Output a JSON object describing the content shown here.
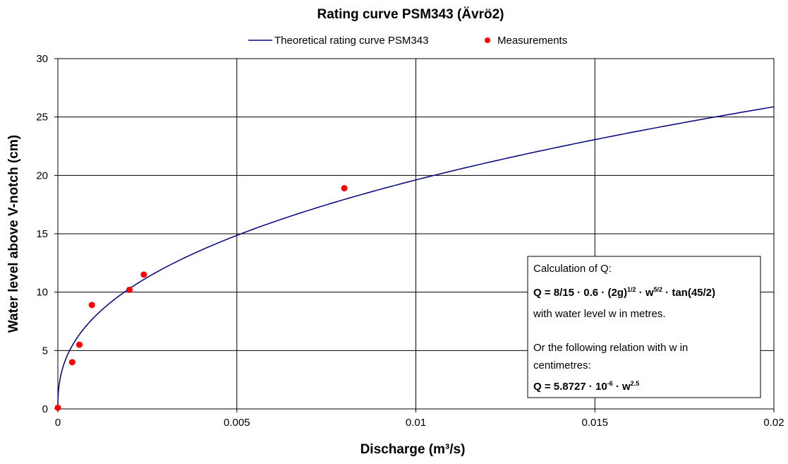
{
  "chart_data": {
    "type": "line",
    "title": "Rating curve PSM343 (Ävrö2)",
    "xlabel": "Discharge (m³/s)",
    "ylabel": "Water level above V-notch (cm)",
    "xlim": [
      0,
      0.02
    ],
    "ylim": [
      0,
      30
    ],
    "x_ticks": [
      "0",
      "0.005",
      "0.01",
      "0.015",
      "0.02"
    ],
    "y_ticks": [
      "0",
      "5",
      "10",
      "15",
      "20",
      "25",
      "30"
    ],
    "grid": true,
    "legend_position": "top",
    "series": [
      {
        "name": "Theoretical rating curve PSM343",
        "kind": "line",
        "color": "#000080",
        "formula_coefficient": 5.8727e-06,
        "formula_exponent": 2.5,
        "w_range": [
          0,
          26
        ]
      },
      {
        "name": "Measurements",
        "kind": "scatter",
        "color": "#ff0000",
        "points": [
          {
            "x": 0.0,
            "y": 0.1
          },
          {
            "x": 0.0004,
            "y": 4.0
          },
          {
            "x": 0.0006,
            "y": 5.5
          },
          {
            "x": 0.00095,
            "y": 8.9
          },
          {
            "x": 0.002,
            "y": 10.2
          },
          {
            "x": 0.0024,
            "y": 11.5
          },
          {
            "x": 0.008,
            "y": 18.9
          }
        ]
      }
    ],
    "annotation": {
      "line1": "Calculation of Q:",
      "line2_parts": [
        "Q = 8/15 · 0.6 · (2g)",
        "1/2",
        " · w",
        "5/2",
        " · tan(45/2)"
      ],
      "line3": "with water level w in metres.",
      "line4": "Or the following relation with w in",
      "line5": "centimetres:",
      "line6_parts": [
        "Q = 5.8727 · 10",
        "-6",
        " · w",
        "2.5"
      ]
    }
  }
}
